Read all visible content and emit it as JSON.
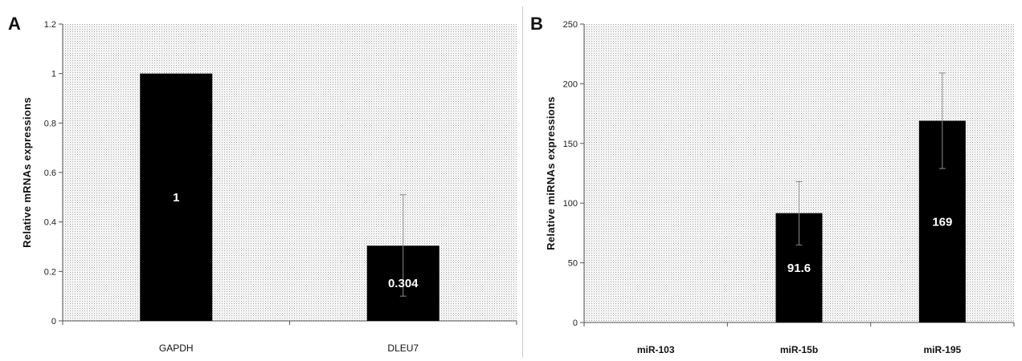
{
  "chart_data": [
    {
      "panel": "A",
      "type": "bar",
      "ylabel": "Relative mRNAs expressions",
      "categories": [
        "GAPDH",
        "DLEU7"
      ],
      "values": [
        1,
        0.304
      ],
      "data_labels": [
        "1",
        "0.304"
      ],
      "error_upper": [
        null,
        0.51
      ],
      "error_lower": [
        null,
        0.1
      ],
      "ylim": [
        0,
        1.2
      ],
      "yticks": [
        "0",
        "0.2",
        "0.4",
        "0.6",
        "0.8",
        "1",
        "1.2"
      ],
      "bar_color": "#000000",
      "label_color": "#ffffff",
      "grid": false,
      "legend": "none",
      "category_bold": false
    },
    {
      "panel": "B",
      "type": "bar",
      "ylabel": "Relative miRNAs expressions",
      "categories": [
        "miR-103",
        "miR-15b",
        "miR-195"
      ],
      "values": [
        0,
        91.6,
        169
      ],
      "data_labels": [
        "",
        "91.6",
        "169"
      ],
      "error_upper": [
        null,
        118,
        209
      ],
      "error_lower": [
        null,
        65,
        129
      ],
      "ylim": [
        0,
        250
      ],
      "yticks": [
        "0",
        "50",
        "100",
        "150",
        "200",
        "250"
      ],
      "bar_color": "#000000",
      "label_color": "#ffffff",
      "grid": false,
      "legend": "none",
      "category_bold": true
    }
  ]
}
